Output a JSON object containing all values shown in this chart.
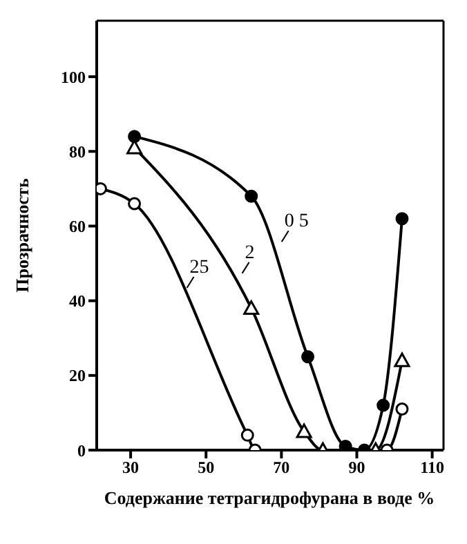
{
  "chart_data": {
    "type": "line",
    "xlabel": "Содержание тетрагидрофурана в воде  %",
    "ylabel": "Прозрачность",
    "xlim": [
      21,
      113
    ],
    "xticks": [
      30,
      50,
      70,
      90,
      110
    ],
    "ylim": [
      0,
      115
    ],
    "yticks": [
      0,
      20,
      40,
      60,
      80,
      100
    ],
    "line_style": "solid",
    "series": [
      {
        "name": "0 5",
        "color": "#000000",
        "marker": "circle",
        "x": [
          31,
          62,
          77,
          87,
          92,
          97,
          102
        ],
        "values": [
          84,
          68,
          25,
          1,
          0,
          12,
          62
        ]
      },
      {
        "name": "2",
        "color": "#000000",
        "marker": "triangle",
        "x": [
          31,
          62,
          76,
          81,
          95,
          102
        ],
        "values": [
          81,
          38,
          5,
          0,
          0,
          24
        ]
      },
      {
        "name": "25",
        "color": "#000000",
        "marker": "circle",
        "x": [
          22,
          31,
          61,
          63,
          98,
          102
        ],
        "values": [
          70,
          66,
          4,
          0,
          0,
          11
        ]
      }
    ]
  }
}
